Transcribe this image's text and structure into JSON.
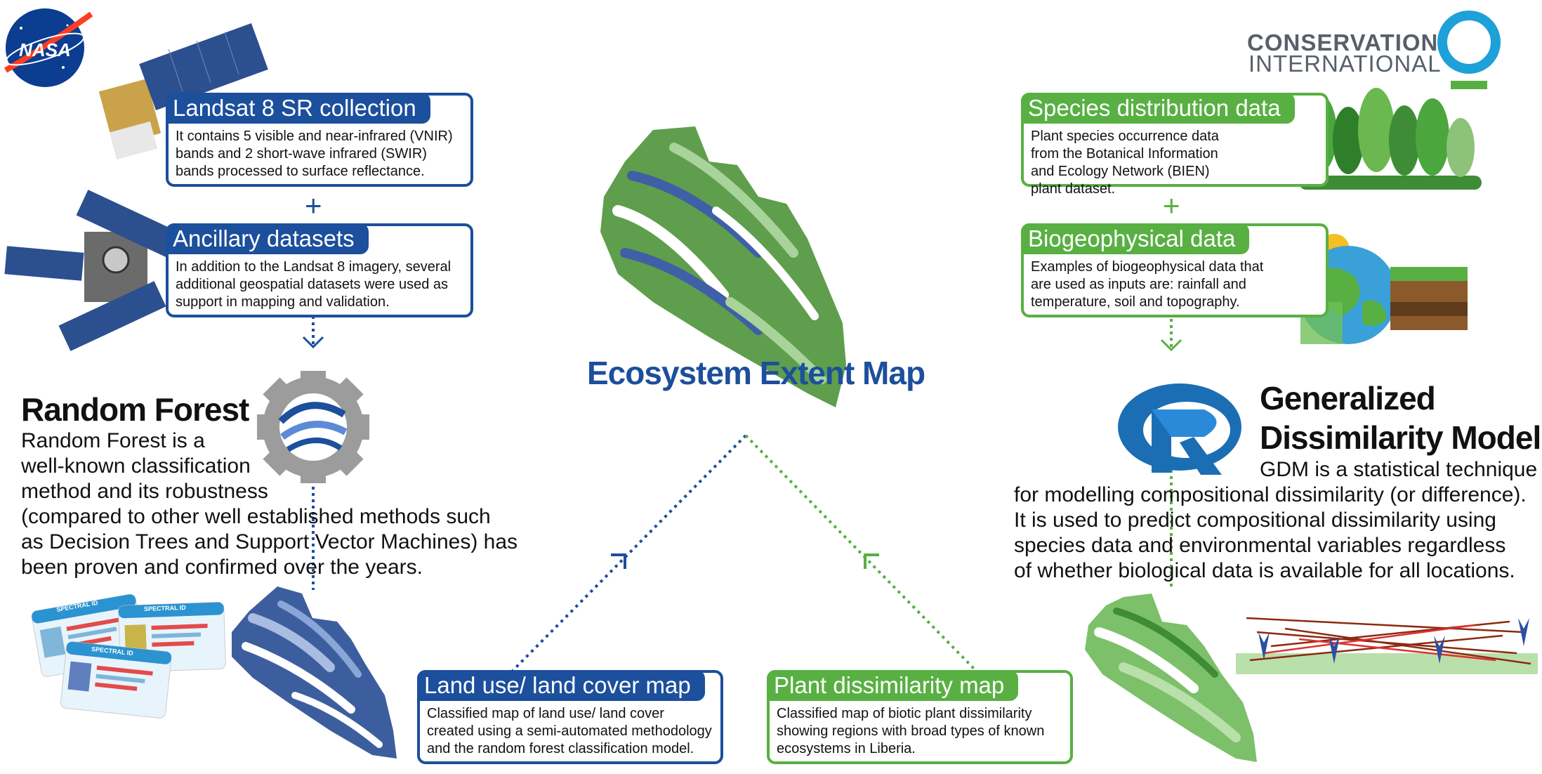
{
  "logos": {
    "nasa": "NASA",
    "ci_line1": "CONSERVATION",
    "ci_line2": "INTERNATIONAL"
  },
  "left": {
    "landsat": {
      "title": "Landsat 8 SR collection",
      "body": "It contains 5 visible and near-infrared (VNIR) bands and 2 short-wave infrared (SWIR) bands processed to surface reflectance."
    },
    "plus": "+",
    "ancillary": {
      "title": "Ancillary datasets",
      "body": "In addition to the Landsat 8 imagery, several additional geospatial datasets were used as support in mapping and validation."
    },
    "rf_title": "Random Forest",
    "rf_lines": [
      "Random Forest is a",
      "well-known classification",
      "method and its robustness",
      "(compared to other well established methods such",
      "as Decision Trees and Support Vector Machines) has",
      "been proven and confirmed over the years."
    ],
    "spectral_label": "SPECTRAL ID",
    "lulc": {
      "title": "Land use/ land cover map",
      "body": "Classified map of land use/ land cover created using a semi-automated methodology and the random forest classification model."
    }
  },
  "center": {
    "title": "Ecosystem Extent Map"
  },
  "right": {
    "species": {
      "title": "Species distribution data",
      "body": "Plant species occurrence data from the Botanical Information and Ecology Network (BIEN) plant dataset."
    },
    "plus": "+",
    "bio": {
      "title": "Biogeophysical data",
      "body": "Examples of biogeophysical data that are used as inputs are: rainfall and temperature, soil and topography."
    },
    "gdm_title1": "Generalized",
    "gdm_title2": "Dissimilarity Model",
    "gdm_lines": [
      "GDM is a statistical technique",
      "for modelling compositional dissimilarity (or difference).",
      "It is used to predict compositional dissimilarity using",
      "species data and environmental variables regardless",
      "of whether biological data is available for all locations."
    ],
    "r_letter": "R",
    "pdm": {
      "title": "Plant dissimilarity map",
      "body": "Classified map of biotic plant dissimilarity showing regions with broad types of known ecosystems in Liberia."
    }
  },
  "colors": {
    "blue": "#1c4f9c",
    "green": "#58b043",
    "light_green": "#8cc27a",
    "gray": "#57606a"
  }
}
